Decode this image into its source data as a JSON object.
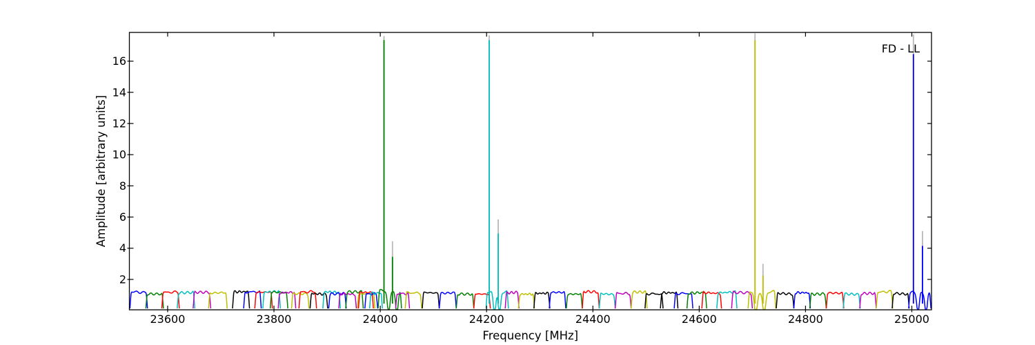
{
  "chart_data": {
    "type": "line",
    "title": "",
    "annotation": "FD - LL",
    "xlabel": "Frequency [MHz]",
    "ylabel": "Amplitude [arbitrary units]",
    "xlim": [
      23528,
      25037
    ],
    "ylim": [
      0.05,
      17.84
    ],
    "xticks": [
      23600,
      23800,
      24000,
      24200,
      24400,
      24600,
      24800,
      25000
    ],
    "yticks": [
      2,
      4,
      6,
      8,
      10,
      12,
      14,
      16
    ],
    "grid": false,
    "legend": null,
    "background": "#ffffff",
    "frame_color": "#000000",
    "colors": {
      "b": "#0000ff",
      "g": "#008000",
      "r": "#ff0000",
      "c": "#00bfbf",
      "m": "#bf00bf",
      "y": "#bfbf00",
      "k": "#000000",
      "gray": "#b8b8b8"
    },
    "baseline_level": 1.15,
    "subband_fields": [
      "f_start_mhz",
      "f_end_mhz",
      "color",
      "notch_positions_fraction"
    ],
    "subbands": [
      [
        23529,
        23562,
        "b"
      ],
      [
        23559,
        23592,
        "g"
      ],
      [
        23589,
        23622,
        "r"
      ],
      [
        23618,
        23651,
        "c"
      ],
      [
        23648,
        23681,
        "m"
      ],
      [
        23677,
        23712,
        "y"
      ],
      [
        23722,
        23754,
        "k"
      ],
      [
        23743,
        23776,
        "b"
      ],
      [
        23764,
        23797,
        "r"
      ],
      [
        23779,
        23812,
        "c"
      ],
      [
        23793,
        23826,
        "g"
      ],
      [
        23808,
        23841,
        "m"
      ],
      [
        23833,
        23866,
        "y"
      ],
      [
        23847,
        23880,
        "r"
      ],
      [
        23868,
        23901,
        "k"
      ],
      [
        23892,
        23925,
        "c"
      ],
      [
        23903,
        23936,
        "b"
      ],
      [
        23922,
        23955,
        "m"
      ],
      [
        23935,
        23968,
        "g"
      ],
      [
        23957,
        23990,
        "y"
      ],
      [
        23959,
        23987,
        "r"
      ],
      [
        23971,
        23995,
        "b"
      ],
      [
        23980,
        24004,
        "c"
      ],
      [
        23996,
        24040,
        "g",
        [
          0.45,
          0.8
        ]
      ],
      [
        24029,
        24055,
        "m"
      ],
      [
        24047,
        24078,
        "y"
      ],
      [
        24079,
        24111,
        "k"
      ],
      [
        24111,
        24143,
        "b"
      ],
      [
        24143,
        24176,
        "g"
      ],
      [
        24176,
        24207,
        "r"
      ],
      [
        24199,
        24241,
        "c",
        [
          0.38,
          0.6
        ]
      ],
      [
        24235,
        24261,
        "m"
      ],
      [
        24260,
        24290,
        "y"
      ],
      [
        24289,
        24319,
        "k"
      ],
      [
        24318,
        24349,
        "b"
      ],
      [
        24350,
        24380,
        "g"
      ],
      [
        24380,
        24412,
        "r"
      ],
      [
        24412,
        24442,
        "c"
      ],
      [
        24442,
        24472,
        "m"
      ],
      [
        24472,
        24502,
        "y"
      ],
      [
        24498,
        24532,
        "k"
      ],
      [
        24527,
        24560,
        "k"
      ],
      [
        24553,
        24588,
        "b"
      ],
      [
        24577,
        24614,
        "g"
      ],
      [
        24605,
        24642,
        "r"
      ],
      [
        24633,
        24671,
        "c"
      ],
      [
        24661,
        24700,
        "m"
      ],
      [
        24692,
        24744,
        "y",
        [
          0.28,
          0.58
        ]
      ],
      [
        24745,
        24778,
        "k"
      ],
      [
        24778,
        24809,
        "b"
      ],
      [
        24808,
        24839,
        "g"
      ],
      [
        24839,
        24872,
        "r"
      ],
      [
        24871,
        24903,
        "c"
      ],
      [
        24902,
        24933,
        "m"
      ],
      [
        24933,
        24964,
        "y"
      ],
      [
        24963,
        24995,
        "k"
      ],
      [
        24994,
        25036,
        "b",
        [
          0.42,
          0.78
        ]
      ]
    ],
    "spike_fields": [
      "freq_mhz",
      "peak_amplitude",
      "gray_peak_amplitude",
      "color"
    ],
    "spikes": [
      [
        24007,
        17.35,
        17.6,
        "g"
      ],
      [
        24023,
        3.45,
        4.45,
        "g"
      ],
      [
        24205,
        17.35,
        17.65,
        "c"
      ],
      [
        24222,
        4.95,
        5.85,
        "c"
      ],
      [
        24705,
        17.35,
        17.78,
        "y"
      ],
      [
        24720,
        2.25,
        3.0,
        "y"
      ],
      [
        25003,
        16.45,
        17.7,
        "b"
      ],
      [
        25020,
        4.15,
        5.1,
        "b"
      ]
    ]
  }
}
